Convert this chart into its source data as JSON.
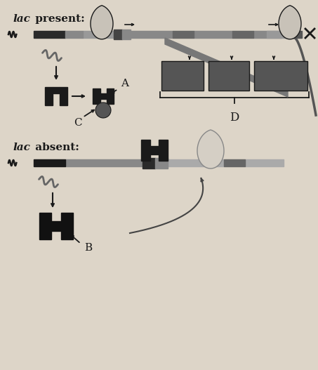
{
  "bg_color": "#ddd5c8",
  "dark": "#1a1a1a",
  "dna_dark": "#333333",
  "dna_mid": "#777777",
  "dna_light": "#aaaaaa",
  "gene_box": "#555555",
  "repressor_fill": "#cccccc",
  "repressor_light": "#e0ddd8",
  "mRNA_color": "#666666",
  "arrow_color": "#222222",
  "title_present": "lac",
  "title_present2": " present:",
  "title_absent": "lac",
  "title_absent2": " absent:",
  "label_A": "A",
  "label_B": "B",
  "label_C": "C",
  "label_D": "D"
}
